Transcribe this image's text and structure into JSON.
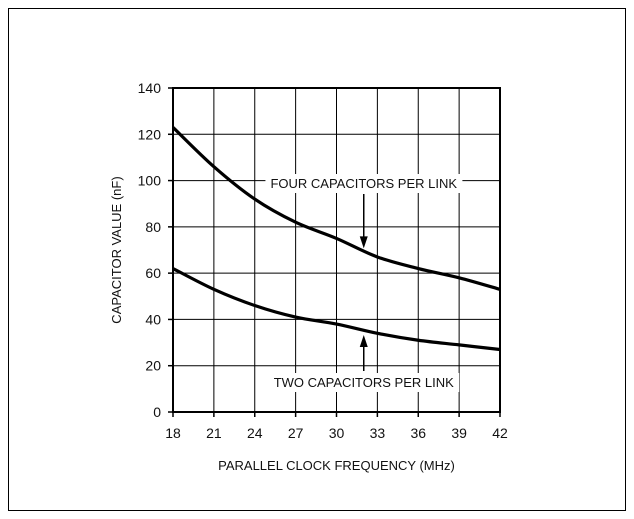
{
  "chart_data": {
    "type": "line",
    "title": "",
    "xlabel": "PARALLEL CLOCK FREQUENCY (MHz)",
    "ylabel": "CAPACITOR VALUE (nF)",
    "xlim": [
      18,
      42
    ],
    "ylim": [
      0,
      140
    ],
    "x_ticks": [
      18,
      21,
      24,
      27,
      30,
      33,
      36,
      39,
      42
    ],
    "y_ticks": [
      0,
      20,
      40,
      60,
      80,
      100,
      120,
      140
    ],
    "x_tick_labels": [
      "18",
      "21",
      "24",
      "27",
      "30",
      "33",
      "36",
      "39",
      "42"
    ],
    "y_tick_labels": [
      "0",
      "20",
      "40",
      "60",
      "80",
      "100",
      "120",
      "140"
    ],
    "grid": true,
    "series": [
      {
        "x": [
          18,
          21,
          24,
          27,
          30,
          33,
          36,
          39,
          42
        ],
        "values": [
          123,
          106,
          92,
          82,
          75,
          67,
          62,
          58,
          53
        ]
      },
      {
        "x": [
          18,
          21,
          24,
          27,
          30,
          33,
          36,
          39,
          42
        ],
        "values": [
          62,
          53,
          46,
          41,
          38,
          34,
          31,
          29,
          27
        ]
      }
    ],
    "annotations": [
      {
        "text": "FOUR CAPACITORS PER LINK",
        "x": 32,
        "y": 69,
        "series": 0,
        "direction": "down"
      },
      {
        "text": "TWO CAPACITORS PER LINK",
        "x": 32,
        "y": 35,
        "series": 1,
        "direction": "up"
      }
    ]
  }
}
